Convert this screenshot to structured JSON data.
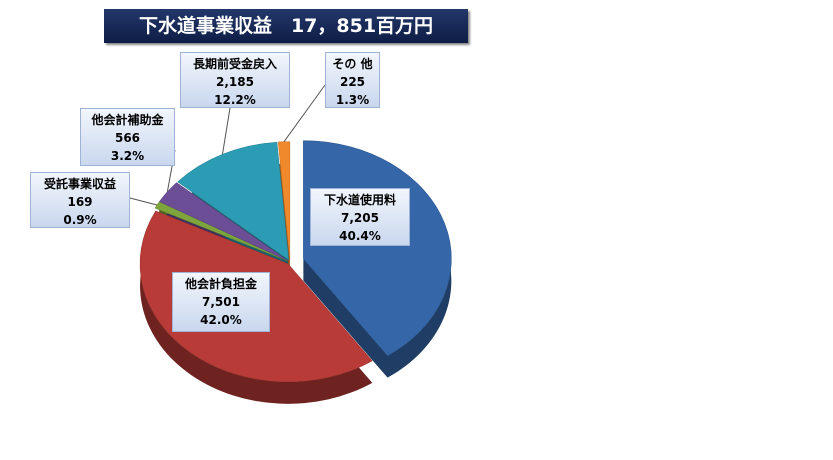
{
  "chart_data": {
    "type": "pie",
    "title": "下水道事業収益　17，851百万円",
    "categories": [
      "下水道使用料",
      "他会計負担金",
      "受託事業収益",
      "他会計補助金",
      "長期前受金戻入",
      "その 他"
    ],
    "values": [
      7205,
      7501,
      169,
      566,
      2185,
      225
    ],
    "value_labels": [
      "7,205",
      "7,501",
      "169",
      "566",
      "2,185",
      "225"
    ],
    "percent_labels": [
      "40.4%",
      "42.0%",
      "0.9%",
      "3.2%",
      "12.2%",
      "1.3%"
    ],
    "colors": [
      "#3466a8",
      "#b83b37",
      "#7ea53c",
      "#6b4e96",
      "#2b9cb3",
      "#f0892b"
    ]
  }
}
